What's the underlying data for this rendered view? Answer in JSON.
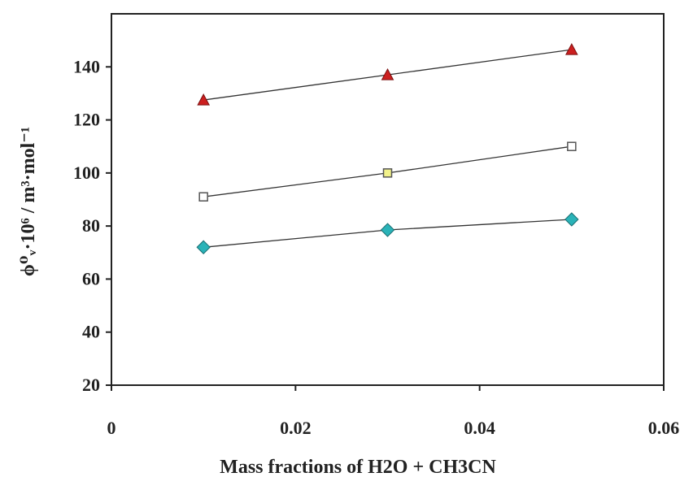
{
  "chart_data": {
    "type": "scatter",
    "xlabel": "Mass fractions of  H2O + CH3CN",
    "ylabel": "ϕ⁰ᵥ·10⁶ / m³·mol⁻¹",
    "xlim": [
      0,
      0.06
    ],
    "ylim": [
      20,
      160
    ],
    "xticks": [
      0,
      0.02,
      0.04,
      0.06
    ],
    "xtick_labels": [
      "0",
      "0.02",
      "0.04",
      "0.06"
    ],
    "yticks": [
      20,
      40,
      60,
      80,
      100,
      120,
      140
    ],
    "ytick_labels": [
      "20",
      "40",
      "60",
      "80",
      "100",
      "120",
      "140"
    ],
    "grid": false,
    "series": [
      {
        "x": [
          0.01,
          0.03,
          0.05
        ],
        "y": [
          127.5,
          137,
          146.5
        ],
        "marker": "triangle",
        "color": "#cc1f1f"
      },
      {
        "x": [
          0.01,
          0.03,
          0.05
        ],
        "y": [
          91,
          100,
          110
        ],
        "marker": "square",
        "color": "#f2f28a",
        "secondary_colors": [
          "#ffffff",
          "#f2f28a",
          "#ffffff"
        ]
      },
      {
        "x": [
          0.01,
          0.03,
          0.05
        ],
        "y": [
          72,
          78.5,
          82.5
        ],
        "marker": "diamond",
        "color": "#2ab3b8"
      }
    ]
  }
}
